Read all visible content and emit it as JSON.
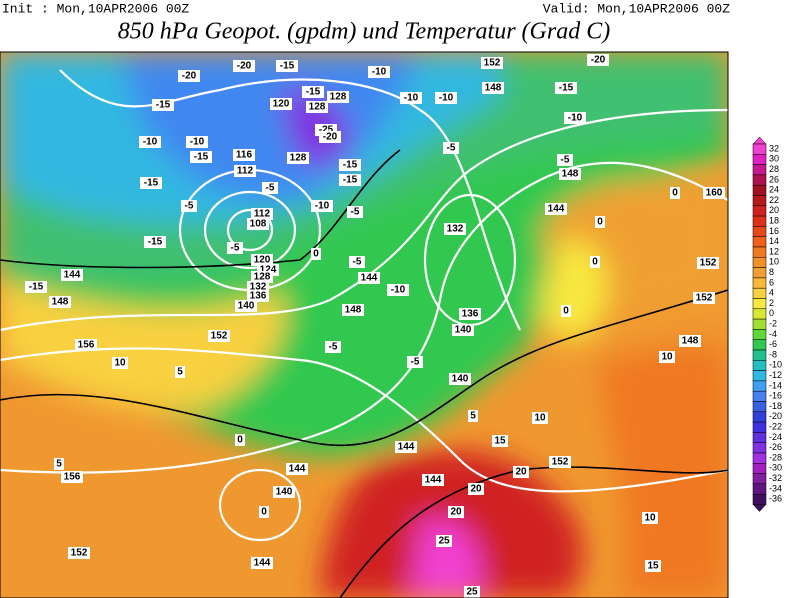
{
  "header": {
    "init": "Init : Mon,10APR2006 00Z",
    "valid": "Valid: Mon,10APR2006 00Z",
    "title": "850 hPa Geopot. (gpdm) und Temperatur (Grad C)"
  },
  "colorbar": {
    "levels": [
      32,
      30,
      28,
      26,
      24,
      22,
      20,
      18,
      16,
      14,
      12,
      10,
      8,
      6,
      4,
      2,
      0,
      -2,
      -4,
      -6,
      -8,
      -10,
      -12,
      -14,
      -16,
      -18,
      -20,
      -22,
      -24,
      -26,
      -28,
      -30,
      -32,
      -34,
      -36
    ],
    "colors": [
      "#f040d0",
      "#e020c0",
      "#c81890",
      "#b01050",
      "#a01020",
      "#b81818",
      "#d02020",
      "#e03018",
      "#e84818",
      "#f06018",
      "#f07820",
      "#f09028",
      "#f0a030",
      "#f8b838",
      "#f8d040",
      "#f8e840",
      "#d8e830",
      "#a0e030",
      "#60d838",
      "#30c850",
      "#20c090",
      "#20c0c0",
      "#30b8e0",
      "#40a0f0",
      "#4880f0",
      "#3860e0",
      "#3040d8",
      "#4030e0",
      "#6030e0",
      "#8030e0",
      "#a030e0",
      "#a020c0",
      "#8020a0",
      "#601880",
      "#401060"
    ]
  },
  "map": {
    "labels": [
      "-20",
      "-15",
      "-20",
      "-10",
      "152",
      "-20",
      "-15",
      "148",
      "-10",
      "-10",
      "-10",
      "-15",
      "-15",
      "120",
      "128",
      "128",
      "-25",
      "-20",
      "-10",
      "-10",
      "-15",
      "116",
      "112",
      "128",
      "-5",
      "-5",
      "148",
      "-15",
      "-15",
      "-15",
      "-5",
      "0",
      "160",
      "-5",
      "-10",
      "-5",
      "144",
      "112",
      "108",
      "132",
      "0",
      "-15",
      "-5",
      "0",
      "-5",
      "120",
      "124",
      "144",
      "0",
      "152",
      "144",
      "128",
      "132",
      "-10",
      "136",
      "152",
      "-15",
      "148",
      "140",
      "148",
      "136",
      "0",
      "152",
      "140",
      "-5",
      "148",
      "156",
      "-5",
      "10",
      "10",
      "5",
      "140",
      "5",
      "10",
      "0",
      "144",
      "15",
      "5",
      "156",
      "144",
      "20",
      "152",
      "144",
      "140",
      "20",
      "0",
      "20",
      "10",
      "152",
      "144",
      "25",
      "15",
      "25"
    ]
  }
}
